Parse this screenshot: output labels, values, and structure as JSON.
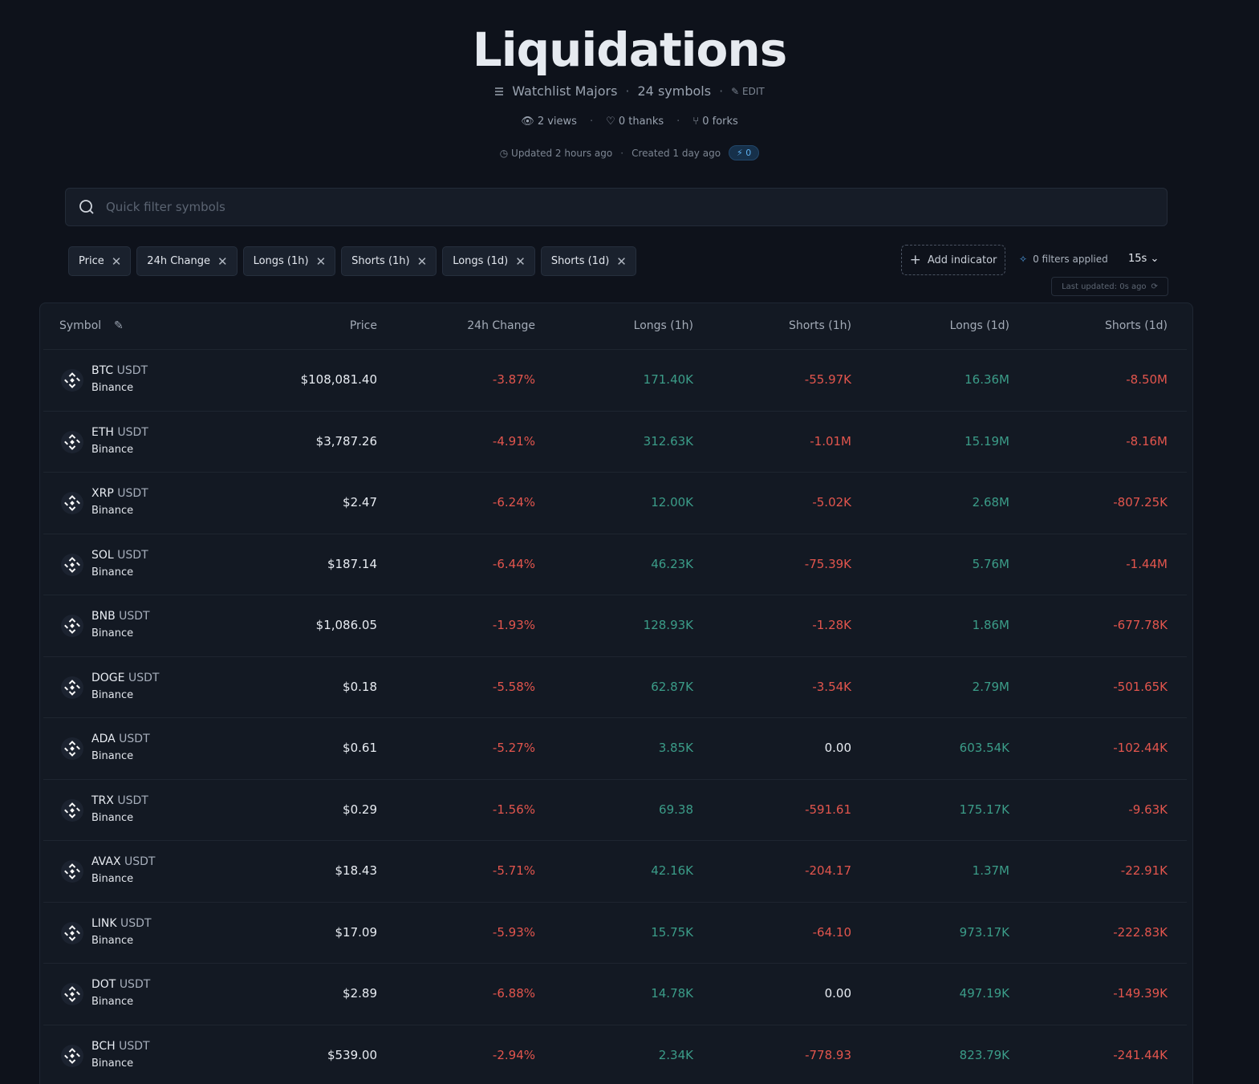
{
  "header": {
    "title": "Liquidations",
    "watchlist": "Watchlist Majors",
    "symbols": "24 symbols",
    "edit": "EDIT",
    "views": "2 views",
    "thanks": "0 thanks",
    "forks": "0 forks",
    "updated": "Updated 2 hours ago",
    "created": "Created 1 day ago",
    "boost": "0"
  },
  "search": {
    "placeholder": "Quick filter symbols"
  },
  "indicators": [
    "Price",
    "24h Change",
    "Longs (1h)",
    "Shorts (1h)",
    "Longs (1d)",
    "Shorts (1d)"
  ],
  "toolbar": {
    "add": "Add indicator",
    "filters": "0 filters applied",
    "interval": "15s",
    "last_updated": "Last updated: 0s ago"
  },
  "table": {
    "columns": [
      "Symbol",
      "Price",
      "24h Change",
      "Longs (1h)",
      "Shorts (1h)",
      "Longs (1d)",
      "Shorts (1d)"
    ],
    "rows": [
      {
        "base": "BTC",
        "quote": "USDT",
        "exchange": "Binance",
        "cells": [
          "$108,081.40",
          "-3.87%",
          "171.40K",
          "-55.97K",
          "16.36M",
          "-8.50M"
        ]
      },
      {
        "base": "ETH",
        "quote": "USDT",
        "exchange": "Binance",
        "cells": [
          "$3,787.26",
          "-4.91%",
          "312.63K",
          "-1.01M",
          "15.19M",
          "-8.16M"
        ]
      },
      {
        "base": "XRP",
        "quote": "USDT",
        "exchange": "Binance",
        "cells": [
          "$2.47",
          "-6.24%",
          "12.00K",
          "-5.02K",
          "2.68M",
          "-807.25K"
        ]
      },
      {
        "base": "SOL",
        "quote": "USDT",
        "exchange": "Binance",
        "cells": [
          "$187.14",
          "-6.44%",
          "46.23K",
          "-75.39K",
          "5.76M",
          "-1.44M"
        ]
      },
      {
        "base": "BNB",
        "quote": "USDT",
        "exchange": "Binance",
        "cells": [
          "$1,086.05",
          "-1.93%",
          "128.93K",
          "-1.28K",
          "1.86M",
          "-677.78K"
        ]
      },
      {
        "base": "DOGE",
        "quote": "USDT",
        "exchange": "Binance",
        "cells": [
          "$0.18",
          "-5.58%",
          "62.87K",
          "-3.54K",
          "2.79M",
          "-501.65K"
        ]
      },
      {
        "base": "ADA",
        "quote": "USDT",
        "exchange": "Binance",
        "cells": [
          "$0.61",
          "-5.27%",
          "3.85K",
          "0.00",
          "603.54K",
          "-102.44K"
        ]
      },
      {
        "base": "TRX",
        "quote": "USDT",
        "exchange": "Binance",
        "cells": [
          "$0.29",
          "-1.56%",
          "69.38",
          "-591.61",
          "175.17K",
          "-9.63K"
        ]
      },
      {
        "base": "AVAX",
        "quote": "USDT",
        "exchange": "Binance",
        "cells": [
          "$18.43",
          "-5.71%",
          "42.16K",
          "-204.17",
          "1.37M",
          "-22.91K"
        ]
      },
      {
        "base": "LINK",
        "quote": "USDT",
        "exchange": "Binance",
        "cells": [
          "$17.09",
          "-5.93%",
          "15.75K",
          "-64.10",
          "973.17K",
          "-222.83K"
        ]
      },
      {
        "base": "DOT",
        "quote": "USDT",
        "exchange": "Binance",
        "cells": [
          "$2.89",
          "-6.88%",
          "14.78K",
          "0.00",
          "497.19K",
          "-149.39K"
        ]
      },
      {
        "base": "BCH",
        "quote": "USDT",
        "exchange": "Binance",
        "cells": [
          "$539.00",
          "-2.94%",
          "2.34K",
          "-778.93",
          "823.79K",
          "-241.44K"
        ]
      }
    ]
  }
}
